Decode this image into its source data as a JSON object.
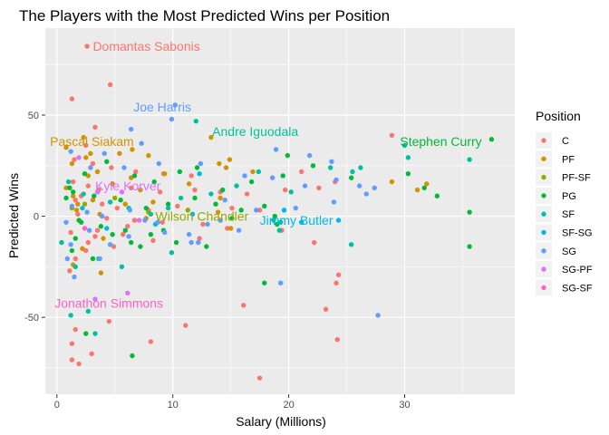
{
  "chart_data": {
    "type": "scatter",
    "title": "The Players with the Most Predicted Wins per Position",
    "xlabel": "Salary (Millions)",
    "ylabel": "Predicted Wins",
    "xlim": [
      -1,
      39.5
    ],
    "ylim": [
      -88,
      93
    ],
    "x_ticks": [
      0,
      10,
      20,
      30
    ],
    "y_ticks": [
      -50,
      0,
      50
    ],
    "grid": true,
    "legend": {
      "title": "Position",
      "placement": "right"
    },
    "colors": {
      "C": "#F8766D",
      "PF": "#D39200",
      "PF-SF": "#93AA00",
      "PG": "#00BA38",
      "SF": "#00C19F",
      "SF-SG": "#00B9E3",
      "SG": "#619CFF",
      "SG-PF": "#DB72FB",
      "SG-SF": "#FF61C3"
    },
    "series": [
      {
        "name": "C",
        "points": [
          [
            2.6,
            84
          ],
          [
            4.6,
            65
          ],
          [
            1.3,
            58
          ],
          [
            3.3,
            44
          ],
          [
            28.9,
            40
          ],
          [
            2.5,
            35
          ],
          [
            1.5,
            28
          ],
          [
            3.1,
            26
          ],
          [
            4.7,
            24
          ],
          [
            6.8,
            22
          ],
          [
            9.2,
            21
          ],
          [
            11.6,
            20
          ],
          [
            1.4,
            17
          ],
          [
            2.7,
            15
          ],
          [
            3.6,
            13
          ],
          [
            6.4,
            14
          ],
          [
            8.9,
            12
          ],
          [
            11.9,
            13
          ],
          [
            14.1,
            12
          ],
          [
            16.4,
            11
          ],
          [
            2.1,
            10
          ],
          [
            1.6,
            8
          ],
          [
            3.9,
            6
          ],
          [
            5.2,
            4
          ],
          [
            7.9,
            3
          ],
          [
            10.4,
            5
          ],
          [
            15.1,
            4
          ],
          [
            17.5,
            3
          ],
          [
            1.8,
            1
          ],
          [
            4.3,
            -1
          ],
          [
            6.7,
            -2
          ],
          [
            9.1,
            -3
          ],
          [
            12.6,
            -4
          ],
          [
            14.7,
            -6
          ],
          [
            1.2,
            -8
          ],
          [
            3.3,
            -10
          ],
          [
            5.7,
            -9
          ],
          [
            8.3,
            -12
          ],
          [
            12.3,
            -11
          ],
          [
            2.7,
            -13
          ],
          [
            4.9,
            -15
          ],
          [
            19.4,
            -7
          ],
          [
            22.2,
            -13
          ],
          [
            24.3,
            -29
          ],
          [
            24.1,
            -33
          ],
          [
            2.5,
            -17
          ],
          [
            1.6,
            -21
          ],
          [
            1.1,
            -27
          ],
          [
            16.1,
            -44
          ],
          [
            23.2,
            -46
          ],
          [
            4.5,
            -52
          ],
          [
            11.1,
            -54
          ],
          [
            1.6,
            -56
          ],
          [
            1.3,
            -63
          ],
          [
            8.1,
            -62
          ],
          [
            24.2,
            -61
          ],
          [
            1.3,
            -71
          ],
          [
            1.9,
            -73
          ],
          [
            3.0,
            -68
          ],
          [
            17.5,
            -80
          ],
          [
            21.1,
            22
          ],
          [
            24.0,
            17
          ],
          [
            19.7,
            13
          ],
          [
            22.6,
            14
          ],
          [
            6.1,
            -5
          ],
          [
            3.5,
            -7
          ]
        ]
      },
      {
        "name": "PF",
        "points": [
          [
            2.3,
            39
          ],
          [
            13.3,
            39
          ],
          [
            0.8,
            34
          ],
          [
            2.9,
            31
          ],
          [
            5.4,
            31
          ],
          [
            1.3,
            26
          ],
          [
            3.5,
            22
          ],
          [
            6.4,
            19
          ],
          [
            9.3,
            21
          ],
          [
            14.0,
            26
          ],
          [
            14.6,
            24
          ],
          [
            14.9,
            28
          ],
          [
            16.9,
            22
          ],
          [
            2.7,
            20
          ],
          [
            4.8,
            16
          ],
          [
            7.2,
            13
          ],
          [
            11.4,
            16
          ],
          [
            1.4,
            10
          ],
          [
            3.1,
            8
          ],
          [
            5.9,
            6
          ],
          [
            8.3,
            7
          ],
          [
            14.1,
            9
          ],
          [
            1.7,
            3
          ],
          [
            3.7,
            1
          ],
          [
            7.7,
            -1
          ],
          [
            13.9,
            2
          ],
          [
            15.0,
            -6
          ],
          [
            4.0,
            -11
          ],
          [
            2.2,
            -16
          ],
          [
            1.4,
            -24
          ],
          [
            3.8,
            -28
          ],
          [
            31.9,
            16
          ],
          [
            28.9,
            17
          ],
          [
            31.1,
            13
          ],
          [
            0.8,
            14
          ],
          [
            1.8,
            6
          ],
          [
            6.5,
            33
          ],
          [
            7.9,
            30
          ],
          [
            2.5,
            29
          ]
        ]
      },
      {
        "name": "PF-SF",
        "points": [
          [
            1.3,
            4
          ],
          [
            2.4,
            6
          ],
          [
            5.0,
            9
          ],
          [
            7.9,
            2
          ],
          [
            11.3,
            3
          ],
          [
            14.1,
            -2
          ]
        ]
      },
      {
        "name": "PG",
        "points": [
          [
            37.5,
            38
          ],
          [
            30.3,
            21
          ],
          [
            31.7,
            14
          ],
          [
            32.8,
            10
          ],
          [
            35.6,
            2
          ],
          [
            35.6,
            -15
          ],
          [
            25.4,
            19
          ],
          [
            19.9,
            30
          ],
          [
            22.1,
            25
          ],
          [
            19.5,
            20
          ],
          [
            16.8,
            17
          ],
          [
            14.3,
            13
          ],
          [
            12.1,
            24
          ],
          [
            10.6,
            22
          ],
          [
            8.4,
            17
          ],
          [
            6.7,
            20
          ],
          [
            4.3,
            27
          ],
          [
            2.4,
            21
          ],
          [
            1.1,
            14
          ],
          [
            1.4,
            12
          ],
          [
            3.2,
            10
          ],
          [
            5.5,
            8
          ],
          [
            7.7,
            4
          ],
          [
            9.6,
            6
          ],
          [
            11.9,
            9
          ],
          [
            13.7,
            6
          ],
          [
            15.9,
            3
          ],
          [
            17.9,
            5
          ],
          [
            1.9,
            -2
          ],
          [
            3.8,
            -5
          ],
          [
            5.9,
            -7
          ],
          [
            8.1,
            -9
          ],
          [
            10.3,
            -13
          ],
          [
            12.9,
            -15
          ],
          [
            1.3,
            -17
          ],
          [
            3.1,
            -21
          ],
          [
            6.4,
            -13
          ],
          [
            9.2,
            -7
          ],
          [
            15.1,
            -1
          ],
          [
            18.8,
            0
          ],
          [
            19.0,
            -4
          ],
          [
            17.9,
            -33
          ],
          [
            7.2,
            -15
          ],
          [
            6.5,
            -69
          ],
          [
            2.5,
            -58
          ],
          [
            2.1,
            -3
          ],
          [
            4.8,
            -9
          ],
          [
            1.6,
            -11
          ],
          [
            0.8,
            9
          ]
        ]
      },
      {
        "name": "SF",
        "points": [
          [
            12.0,
            47
          ],
          [
            30.0,
            35
          ],
          [
            35.6,
            28
          ],
          [
            30.3,
            29
          ],
          [
            23.6,
            24
          ],
          [
            25.5,
            22
          ],
          [
            26.2,
            24
          ],
          [
            17.4,
            22
          ],
          [
            20.2,
            12
          ],
          [
            15.5,
            15
          ],
          [
            13.3,
            11
          ],
          [
            10.7,
            9
          ],
          [
            9.6,
            4
          ],
          [
            8.1,
            1
          ],
          [
            6.2,
            4
          ],
          [
            4.6,
            7
          ],
          [
            2.3,
            11
          ],
          [
            1.0,
            17
          ],
          [
            18.7,
            -2
          ],
          [
            19.2,
            -7
          ],
          [
            25.4,
            -14
          ],
          [
            9.9,
            -18
          ],
          [
            3.6,
            -21
          ],
          [
            1.6,
            -25
          ],
          [
            0.4,
            -13
          ],
          [
            5.6,
            -25
          ],
          [
            19.3,
            -3
          ],
          [
            2.7,
            -47
          ],
          [
            3.3,
            -58
          ],
          [
            1.2,
            -49
          ]
        ]
      },
      {
        "name": "SF-SG",
        "points": [
          [
            2.2,
            4
          ],
          [
            4.3,
            -6
          ],
          [
            8.5,
            -4
          ],
          [
            11.7,
            1
          ],
          [
            19.6,
            3
          ],
          [
            21.1,
            -3
          ],
          [
            24.3,
            -2
          ],
          [
            12.3,
            21
          ]
        ]
      },
      {
        "name": "SG",
        "points": [
          [
            10.2,
            55
          ],
          [
            9.9,
            48
          ],
          [
            6.4,
            43
          ],
          [
            7.3,
            36
          ],
          [
            4.1,
            31
          ],
          [
            1.2,
            32
          ],
          [
            2.9,
            24
          ],
          [
            5.8,
            24
          ],
          [
            8.8,
            26
          ],
          [
            12.4,
            26
          ],
          [
            16.2,
            20
          ],
          [
            18.6,
            19
          ],
          [
            21.4,
            15
          ],
          [
            24.1,
            18
          ],
          [
            26.1,
            15
          ],
          [
            27.4,
            14
          ],
          [
            26.7,
            11
          ],
          [
            23.9,
            7
          ],
          [
            20.6,
            4
          ],
          [
            17.2,
            3
          ],
          [
            14.5,
            8
          ],
          [
            13.0,
            -4
          ],
          [
            11.4,
            -9
          ],
          [
            11.6,
            -13
          ],
          [
            9.3,
            -8
          ],
          [
            7.6,
            -2
          ],
          [
            6.3,
            3
          ],
          [
            3.9,
            0
          ],
          [
            2.6,
            2
          ],
          [
            1.3,
            5
          ],
          [
            0.8,
            -3
          ],
          [
            2.8,
            -7
          ],
          [
            4.6,
            -14
          ],
          [
            6.2,
            -10
          ],
          [
            8.7,
            -3
          ],
          [
            12.2,
            -13
          ],
          [
            14.1,
            -2
          ],
          [
            15.7,
            -7
          ],
          [
            19.3,
            -33
          ],
          [
            1.2,
            -14
          ],
          [
            3.7,
            -21
          ],
          [
            1.5,
            -30
          ],
          [
            0.9,
            -21
          ],
          [
            27.7,
            -49
          ],
          [
            18.9,
            33
          ],
          [
            21.8,
            30
          ],
          [
            23.7,
            27
          ]
        ]
      },
      {
        "name": "SG-PF",
        "points": [
          [
            1.9,
            29
          ],
          [
            3.5,
            12
          ],
          [
            5.6,
            12
          ],
          [
            7.1,
            -2
          ],
          [
            3.3,
            -41
          ],
          [
            6.1,
            -38
          ]
        ]
      },
      {
        "name": "SG-SF",
        "points": [
          [
            2.4,
            -6
          ]
        ]
      }
    ],
    "annotations": [
      {
        "label": "Domantas Sabonis",
        "x": 3.1,
        "y": 84,
        "series": "C"
      },
      {
        "label": "Joe Harris",
        "x": 6.6,
        "y": 54,
        "series": "SG"
      },
      {
        "label": "Andre Iguodala",
        "x": 13.4,
        "y": 42,
        "series": "SF"
      },
      {
        "label": "Stephen Curry",
        "x": 29.6,
        "y": 37,
        "series": "PG"
      },
      {
        "label": "Pascal Siakam",
        "x": -0.6,
        "y": 37,
        "series": "PF"
      },
      {
        "label": "Kyle Korver",
        "x": 3.3,
        "y": 15,
        "series": "SG-PF"
      },
      {
        "label": "Wilson Chandler",
        "x": 8.5,
        "y": 0,
        "series": "PF-SF"
      },
      {
        "label": "Jimmy Butler",
        "x": 17.5,
        "y": -2,
        "series": "SF-SG"
      },
      {
        "label": "Jonathon Simmons",
        "x": -0.2,
        "y": -43,
        "series": "SG-SF"
      }
    ]
  }
}
